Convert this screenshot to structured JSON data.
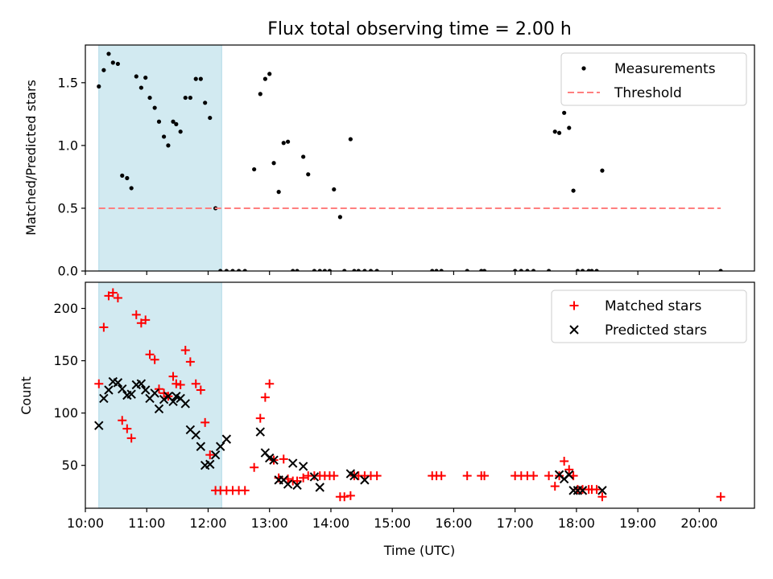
{
  "chart_data": [
    {
      "type": "scatter",
      "title": "Flux total observing time = 2.00 h",
      "xlabel": "",
      "ylabel": "Matched/Predicted stars",
      "xlim": [
        10.0,
        20.9
      ],
      "ylim": [
        0.0,
        1.8
      ],
      "yticks": [
        0.0,
        0.5,
        1.0,
        1.5
      ],
      "ytick_labels": [
        "0.0",
        "0.5",
        "1.0",
        "1.5"
      ],
      "legend": "upper right",
      "highlight_span": [
        10.22,
        12.22
      ],
      "colors": {
        "measure": "#000000",
        "threshold": "#ff7f7f",
        "span": "#add8e6"
      },
      "series": [
        {
          "name": "Measurements",
          "kind": "points",
          "x": [
            10.22,
            10.3,
            10.38,
            10.45,
            10.53,
            10.6,
            10.68,
            10.75,
            10.83,
            10.91,
            10.98,
            11.05,
            11.13,
            11.2,
            11.28,
            11.35,
            11.43,
            11.48,
            11.55,
            11.63,
            11.71,
            11.8,
            11.88,
            11.95,
            12.03,
            12.12,
            12.2,
            12.3,
            12.4,
            12.5,
            12.6,
            12.75,
            12.85,
            12.93,
            13.0,
            13.07,
            13.15,
            13.23,
            13.3,
            13.38,
            13.45,
            13.55,
            13.63,
            13.73,
            13.82,
            13.9,
            13.98,
            14.05,
            14.15,
            14.22,
            14.32,
            14.38,
            14.45,
            14.55,
            14.65,
            14.75,
            15.65,
            15.72,
            15.8,
            16.22,
            16.45,
            16.5,
            17.0,
            17.1,
            17.2,
            17.3,
            17.55,
            17.65,
            17.72,
            17.8,
            17.88,
            17.95,
            18.02,
            18.1,
            18.2,
            18.25,
            18.33,
            18.42,
            20.35
          ],
          "y": [
            1.47,
            1.6,
            1.73,
            1.66,
            1.65,
            0.76,
            0.74,
            0.66,
            1.55,
            1.46,
            1.54,
            1.38,
            1.3,
            1.19,
            1.07,
            1.0,
            1.19,
            1.17,
            1.11,
            1.38,
            1.38,
            1.53,
            1.53,
            1.34,
            1.22,
            0.5,
            0.0,
            0.0,
            0.0,
            0.0,
            0.0,
            0.81,
            1.41,
            1.53,
            1.57,
            0.86,
            0.63,
            1.02,
            1.03,
            0.0,
            0.0,
            0.91,
            0.77,
            0.0,
            0.0,
            0.0,
            0.0,
            0.65,
            0.43,
            0.0,
            1.05,
            0.0,
            0.0,
            0.0,
            0.0,
            0.0,
            0.0,
            0.0,
            0.0,
            0.0,
            0.0,
            0.0,
            0.0,
            0.0,
            0.0,
            0.0,
            0.0,
            1.11,
            1.1,
            1.26,
            1.14,
            0.64,
            0.0,
            0.0,
            0.0,
            0.0,
            0.0,
            0.8,
            0.0
          ]
        },
        {
          "name": "Threshold",
          "kind": "line",
          "x": [
            10.22,
            20.35
          ],
          "y": [
            0.5,
            0.5
          ]
        }
      ]
    },
    {
      "type": "scatter",
      "title": "",
      "xlabel": "Time (UTC)",
      "ylabel": "Count",
      "xlim": [
        10.0,
        20.9
      ],
      "ylim": [
        9,
        225
      ],
      "xticks": [
        10,
        11,
        12,
        13,
        14,
        15,
        16,
        17,
        18,
        19,
        20
      ],
      "xtick_labels": [
        "10:00",
        "11:00",
        "12:00",
        "13:00",
        "14:00",
        "15:00",
        "16:00",
        "17:00",
        "18:00",
        "19:00",
        "20:00"
      ],
      "yticks": [
        50,
        100,
        150,
        200
      ],
      "ytick_labels": [
        "50",
        "100",
        "150",
        "200"
      ],
      "legend": "upper right",
      "highlight_span": [
        10.22,
        12.22
      ],
      "colors": {
        "matched": "#ff0000",
        "predicted": "#000000",
        "span": "#add8e6"
      },
      "series": [
        {
          "name": "Matched stars",
          "marker": "plus",
          "x": [
            10.22,
            10.3,
            10.38,
            10.45,
            10.53,
            10.6,
            10.68,
            10.75,
            10.83,
            10.91,
            10.98,
            11.05,
            11.13,
            11.2,
            11.28,
            11.35,
            11.43,
            11.48,
            11.55,
            11.63,
            11.71,
            11.8,
            11.88,
            11.95,
            12.03,
            12.12,
            12.2,
            12.3,
            12.4,
            12.5,
            12.6,
            12.75,
            12.85,
            12.93,
            13.0,
            13.07,
            13.15,
            13.23,
            13.3,
            13.38,
            13.45,
            13.55,
            13.63,
            13.73,
            13.82,
            13.9,
            13.98,
            14.05,
            14.15,
            14.22,
            14.32,
            14.38,
            14.45,
            14.55,
            14.65,
            14.75,
            15.65,
            15.72,
            15.8,
            16.22,
            16.45,
            16.5,
            17.0,
            17.1,
            17.2,
            17.3,
            17.55,
            17.65,
            17.72,
            17.8,
            17.88,
            17.95,
            18.02,
            18.1,
            18.2,
            18.25,
            18.33,
            18.42,
            20.35
          ],
          "y": [
            128,
            182,
            212,
            215,
            210,
            93,
            85,
            76,
            194,
            186,
            189,
            156,
            151,
            123,
            119,
            116,
            135,
            128,
            127,
            160,
            149,
            128,
            122,
            91,
            60,
            26,
            26,
            26,
            26,
            26,
            26,
            48,
            95,
            115,
            128,
            55,
            38,
            56,
            37,
            35,
            35,
            38,
            40,
            40,
            40,
            40,
            40,
            40,
            20,
            20,
            21,
            40,
            40,
            40,
            40,
            40,
            40,
            40,
            40,
            40,
            40,
            40,
            40,
            40,
            40,
            40,
            40,
            30,
            40,
            54,
            46,
            40,
            27,
            27,
            27,
            27,
            27,
            20,
            20
          ]
        },
        {
          "name": "Predicted stars",
          "marker": "x",
          "x": [
            10.22,
            10.3,
            10.38,
            10.45,
            10.53,
            10.6,
            10.68,
            10.75,
            10.83,
            10.91,
            10.98,
            11.05,
            11.13,
            11.2,
            11.28,
            11.35,
            11.43,
            11.48,
            11.55,
            11.63,
            11.71,
            11.8,
            11.88,
            11.95,
            12.03,
            12.12,
            12.2,
            12.3,
            12.85,
            12.93,
            13.0,
            13.07,
            13.15,
            13.23,
            13.3,
            13.38,
            13.45,
            13.55,
            13.73,
            13.82,
            14.32,
            14.38,
            14.55,
            17.72,
            17.8,
            17.88,
            17.95,
            18.02,
            18.1,
            18.42
          ],
          "y": [
            88,
            114,
            122,
            130,
            129,
            123,
            117,
            118,
            127,
            128,
            122,
            114,
            119,
            104,
            113,
            116,
            111,
            116,
            114,
            109,
            84,
            79,
            68,
            50,
            51,
            60,
            68,
            75,
            82,
            62,
            57,
            55,
            36,
            36,
            32,
            52,
            31,
            49,
            39,
            29,
            42,
            40,
            36,
            41,
            37,
            41,
            26,
            26,
            26,
            26
          ]
        }
      ]
    }
  ]
}
